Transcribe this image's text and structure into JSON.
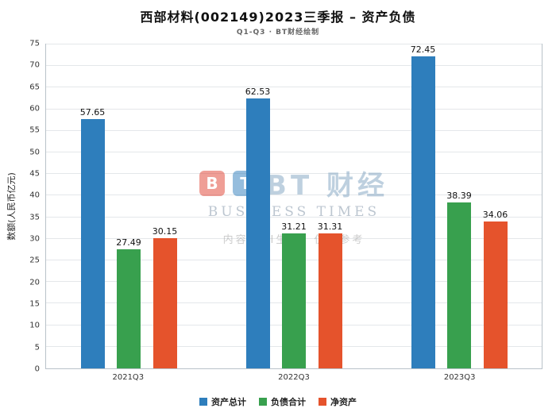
{
  "header": {
    "title": "西部材料(002149)2023三季报 – 资产负债",
    "subtitle": "Q1-Q3 · BT财经绘制"
  },
  "watermark": {
    "logo_b": "B",
    "logo_t": "T",
    "logo_text": "BT 财经",
    "logo_sub": "BUSINESS TIMES",
    "note": "内容由AI生成，仅供参考"
  },
  "chart_data": {
    "type": "bar",
    "title": "西部材料(002149)2023三季报 – 资产负债",
    "subtitle": "Q1-Q3 · BT财经绘制",
    "ylabel": "数额(人民币亿元)",
    "xlabel": "",
    "categories": [
      "2021Q3",
      "2022Q3",
      "2023Q3"
    ],
    "series": [
      {
        "key": "total-assets",
        "name": "资产总计",
        "color": "#2e7ebc",
        "values": [
          57.65,
          62.53,
          72.45
        ]
      },
      {
        "key": "total-liabilities",
        "name": "负债合计",
        "color": "#38a04e",
        "values": [
          27.49,
          31.21,
          38.39
        ]
      },
      {
        "key": "net-assets",
        "name": "净资产",
        "color": "#e5532c",
        "values": [
          30.15,
          31.31,
          34.06
        ]
      }
    ],
    "ylim": [
      0,
      75
    ],
    "ytick_step": 5,
    "grid": true,
    "legend_position": "bottom"
  }
}
